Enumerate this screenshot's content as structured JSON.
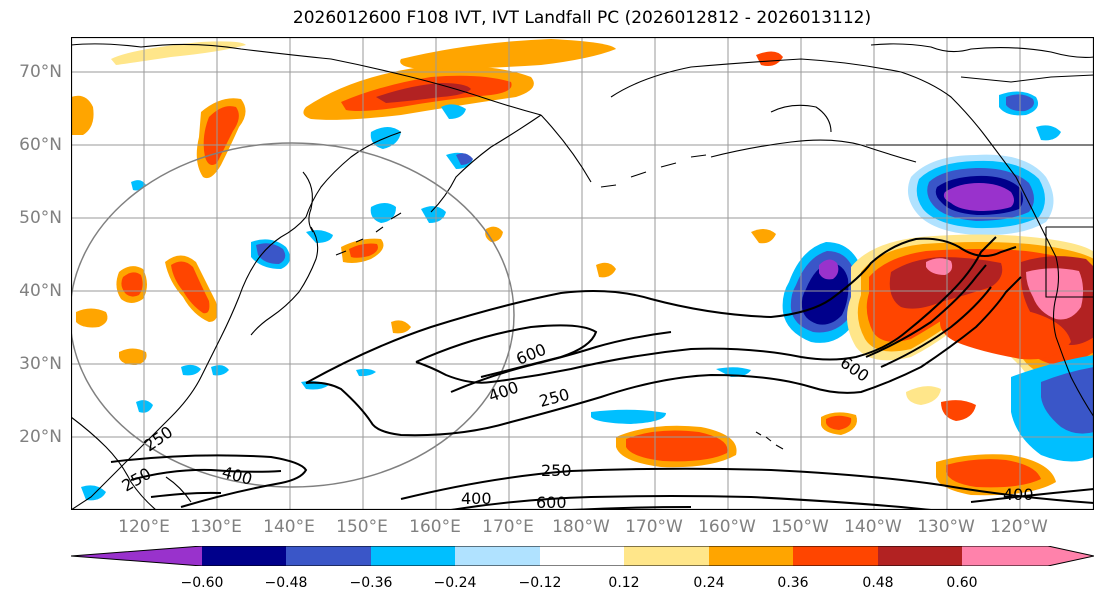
{
  "title": "2026012600 F108 IVT, IVT Landfall PC (2026012812 - 2026013112)",
  "lat_labels": [
    "70°N",
    "60°N",
    "50°N",
    "40°N",
    "30°N",
    "20°N"
  ],
  "lon_labels": [
    "120°E",
    "130°E",
    "140°E",
    "150°E",
    "160°E",
    "170°E",
    "180°W",
    "170°W",
    "160°W",
    "150°W",
    "140°W",
    "130°W",
    "120°W"
  ],
  "colorbar": {
    "ticks": [
      "−0.60",
      "−0.48",
      "−0.36",
      "−0.24",
      "−0.12",
      "0.12",
      "0.24",
      "0.36",
      "0.48",
      "0.60"
    ],
    "colors": [
      "#9932cc",
      "#00008b",
      "#3a56c8",
      "#00bfff",
      "#b0e2ff",
      "#ffffff",
      "#ffe68a",
      "#ffa500",
      "#ff4500",
      "#b22222",
      "#ff82ab"
    ]
  },
  "contour_labels": {
    "c250_left": "250",
    "c250_topleft": "250",
    "c400_left": "400",
    "c600_mid": "600",
    "c400_mid": "400",
    "c250_mid": "250",
    "c250_bottom": "250",
    "c400_bottom": "400",
    "c600_bottom": "600",
    "c600_right": "600",
    "c400_right": "400"
  }
}
